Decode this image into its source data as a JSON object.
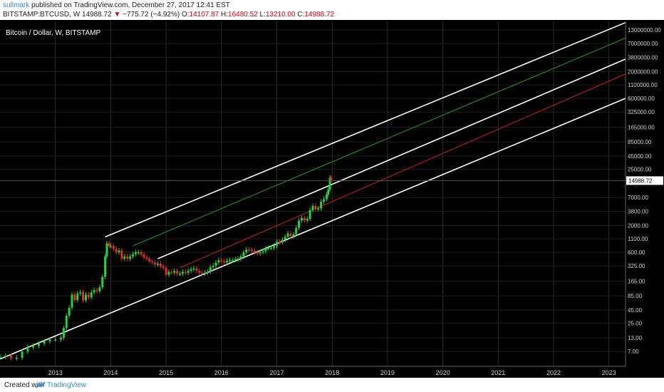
{
  "header": {
    "author": "sullmark",
    "published_text": "published on TradingView.com, December 27, 2017 12:41 EST",
    "symbol": "BITSTAMP:BTCUSD, W",
    "last": "14988.72",
    "change_arrow": "▼",
    "change": "−775.72 (−4.92%)",
    "open_label": "O:",
    "open": "14107.87",
    "high_label": "H:",
    "high": "16480.52",
    "low_label": "L:",
    "low": "13210.00",
    "close_label": "C:",
    "close": "14988.72"
  },
  "chart_label": "Bitcoin / Dollar, W, BITSTAMP",
  "footer": {
    "created_with": "Created with",
    "brand": "TradingView"
  },
  "colors": {
    "background": "#000000",
    "up": "#2ecc40",
    "down": "#e0301e",
    "channel": "#ffffff",
    "green_line": "#2e8b2e",
    "red_line": "#b22222",
    "axis_text": "#d0d0d0"
  },
  "chart_data": {
    "type": "line",
    "title": "Bitcoin / Dollar, W, BITSTAMP",
    "y_scale": "log",
    "y_ticks": [
      "13000000.00",
      "7000000.00",
      "3800000.00",
      "2000000.00",
      "1100000.00",
      "600000.00",
      "325000.00",
      "165000.00",
      "85000.00",
      "45000.00",
      "25000.00",
      "14988.72",
      "7000.00",
      "3800.00",
      "2000.00",
      "1100.00",
      "600.00",
      "325.00",
      "165.00",
      "85.00",
      "45.00",
      "25.00",
      "13.00",
      "7.00"
    ],
    "x_ticks": [
      "2013",
      "2014",
      "2015",
      "2016",
      "2017",
      "2018",
      "2019",
      "2020",
      "2021",
      "2022",
      "2023"
    ],
    "last_price_label": "14988.72",
    "series": [
      {
        "x": [
          2012.0,
          2012.1,
          2012.2,
          2012.3,
          2012.4,
          2012.5,
          2012.6,
          2012.7,
          2012.8,
          2012.9,
          2013.0,
          2013.1,
          2013.15,
          2013.2,
          2013.25,
          2013.3,
          2013.35,
          2013.4,
          2013.45,
          2013.5,
          2013.55,
          2013.6,
          2013.65,
          2013.7,
          2013.75,
          2013.8,
          2013.85,
          2013.9,
          2013.93,
          2013.97,
          2014.0,
          2014.05,
          2014.1,
          2014.15,
          2014.2,
          2014.25,
          2014.3,
          2014.35,
          2014.4,
          2014.45,
          2014.5,
          2014.55,
          2014.6,
          2014.65,
          2014.7,
          2014.75,
          2014.8,
          2014.85,
          2014.9,
          2014.95,
          2015.0,
          2015.05,
          2015.1,
          2015.15,
          2015.2,
          2015.25,
          2015.3,
          2015.35,
          2015.4,
          2015.45,
          2015.5,
          2015.55,
          2015.6,
          2015.65,
          2015.7,
          2015.75,
          2015.8,
          2015.85,
          2015.9,
          2015.95,
          2016.0,
          2016.05,
          2016.1,
          2016.15,
          2016.2,
          2016.25,
          2016.3,
          2016.35,
          2016.4,
          2016.45,
          2016.5,
          2016.55,
          2016.6,
          2016.65,
          2016.7,
          2016.75,
          2016.8,
          2016.85,
          2016.9,
          2016.95,
          2017.0,
          2017.05,
          2017.1,
          2017.15,
          2017.2,
          2017.25,
          2017.3,
          2017.35,
          2017.4,
          2017.45,
          2017.5,
          2017.55,
          2017.6,
          2017.65,
          2017.7,
          2017.75,
          2017.8,
          2017.85,
          2017.9,
          2017.93,
          2017.96,
          2017.98
        ],
        "values": [
          5.5,
          5.8,
          5.2,
          5.3,
          7,
          8.5,
          9,
          10,
          11,
          12,
          12,
          13,
          20,
          35,
          50,
          90,
          70,
          95,
          100,
          70,
          90,
          80,
          100,
          110,
          105,
          125,
          200,
          500,
          900,
          800,
          800,
          700,
          600,
          650,
          450,
          500,
          450,
          500,
          550,
          600,
          600,
          550,
          480,
          450,
          400,
          380,
          350,
          360,
          320,
          300,
          220,
          250,
          240,
          260,
          230,
          230,
          250,
          240,
          260,
          280,
          290,
          260,
          240,
          230,
          240,
          250,
          310,
          330,
          380,
          420,
          400,
          380,
          410,
          420,
          420,
          440,
          450,
          500,
          600,
          680,
          670,
          640,
          600,
          570,
          600,
          630,
          720,
          730,
          740,
          800,
          960,
          950,
          1050,
          1200,
          1400,
          1250,
          1350,
          1800,
          2500,
          2800,
          2500,
          2700,
          4000,
          4800,
          4200,
          4300,
          5800,
          6500,
          8000,
          10000,
          17000,
          15000
        ]
      }
    ],
    "channel_lines": [
      {
        "name": "",
        "kind": "white",
        "x": [
          2013.9,
          2023.3
        ],
        "values": [
          1200,
          18000000
        ]
      },
      {
        "name": "",
        "kind": "white",
        "x": [
          2014.85,
          2023.3
        ],
        "values": [
          450,
          3500000
        ]
      },
      {
        "name": "",
        "kind": "white",
        "x": [
          2012.0,
          2023.3
        ],
        "values": [
          5,
          600000
        ]
      },
      {
        "name": "",
        "kind": "green",
        "x": [
          2014.4,
          2023.3
        ],
        "values": [
          800,
          9000000
        ]
      },
      {
        "name": "",
        "kind": "red",
        "x": [
          2015.25,
          2023.3
        ],
        "values": [
          300,
          1800000
        ]
      }
    ]
  }
}
